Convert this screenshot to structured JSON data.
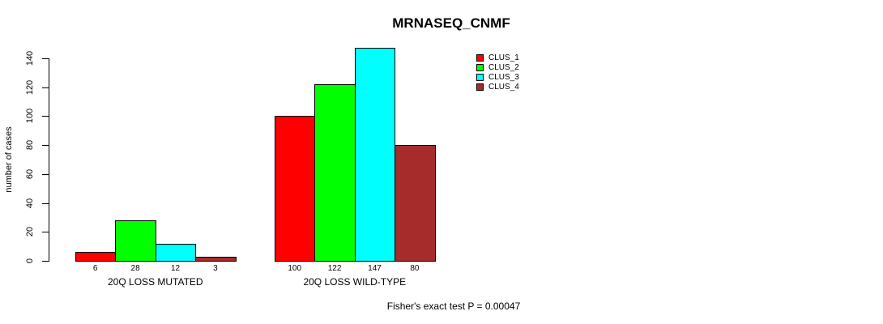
{
  "chart_data": {
    "type": "bar",
    "title": "MRNASEQ_CNMF",
    "ylabel": "number of cases",
    "xlabel": "",
    "ylim": [
      0,
      140
    ],
    "yticks": [
      0,
      20,
      40,
      60,
      80,
      100,
      120,
      140
    ],
    "grid": false,
    "legend_position": "top-right",
    "categories": [
      "20Q LOSS MUTATED",
      "20Q LOSS WILD-TYPE"
    ],
    "series": [
      {
        "name": "CLUS_1",
        "color": "#ff0000",
        "values": [
          6,
          100
        ]
      },
      {
        "name": "CLUS_2",
        "color": "#00ff00",
        "values": [
          28,
          122
        ]
      },
      {
        "name": "CLUS_3",
        "color": "#00ffff",
        "values": [
          12,
          147
        ]
      },
      {
        "name": "CLUS_4",
        "color": "#a62b2b",
        "values": [
          3,
          80
        ]
      }
    ],
    "bar_value_labels": [
      [
        "6",
        "28",
        "12",
        "3"
      ],
      [
        "100",
        "122",
        "147",
        "80"
      ]
    ],
    "annotation": "Fisher's exact test P = 0.00047"
  }
}
